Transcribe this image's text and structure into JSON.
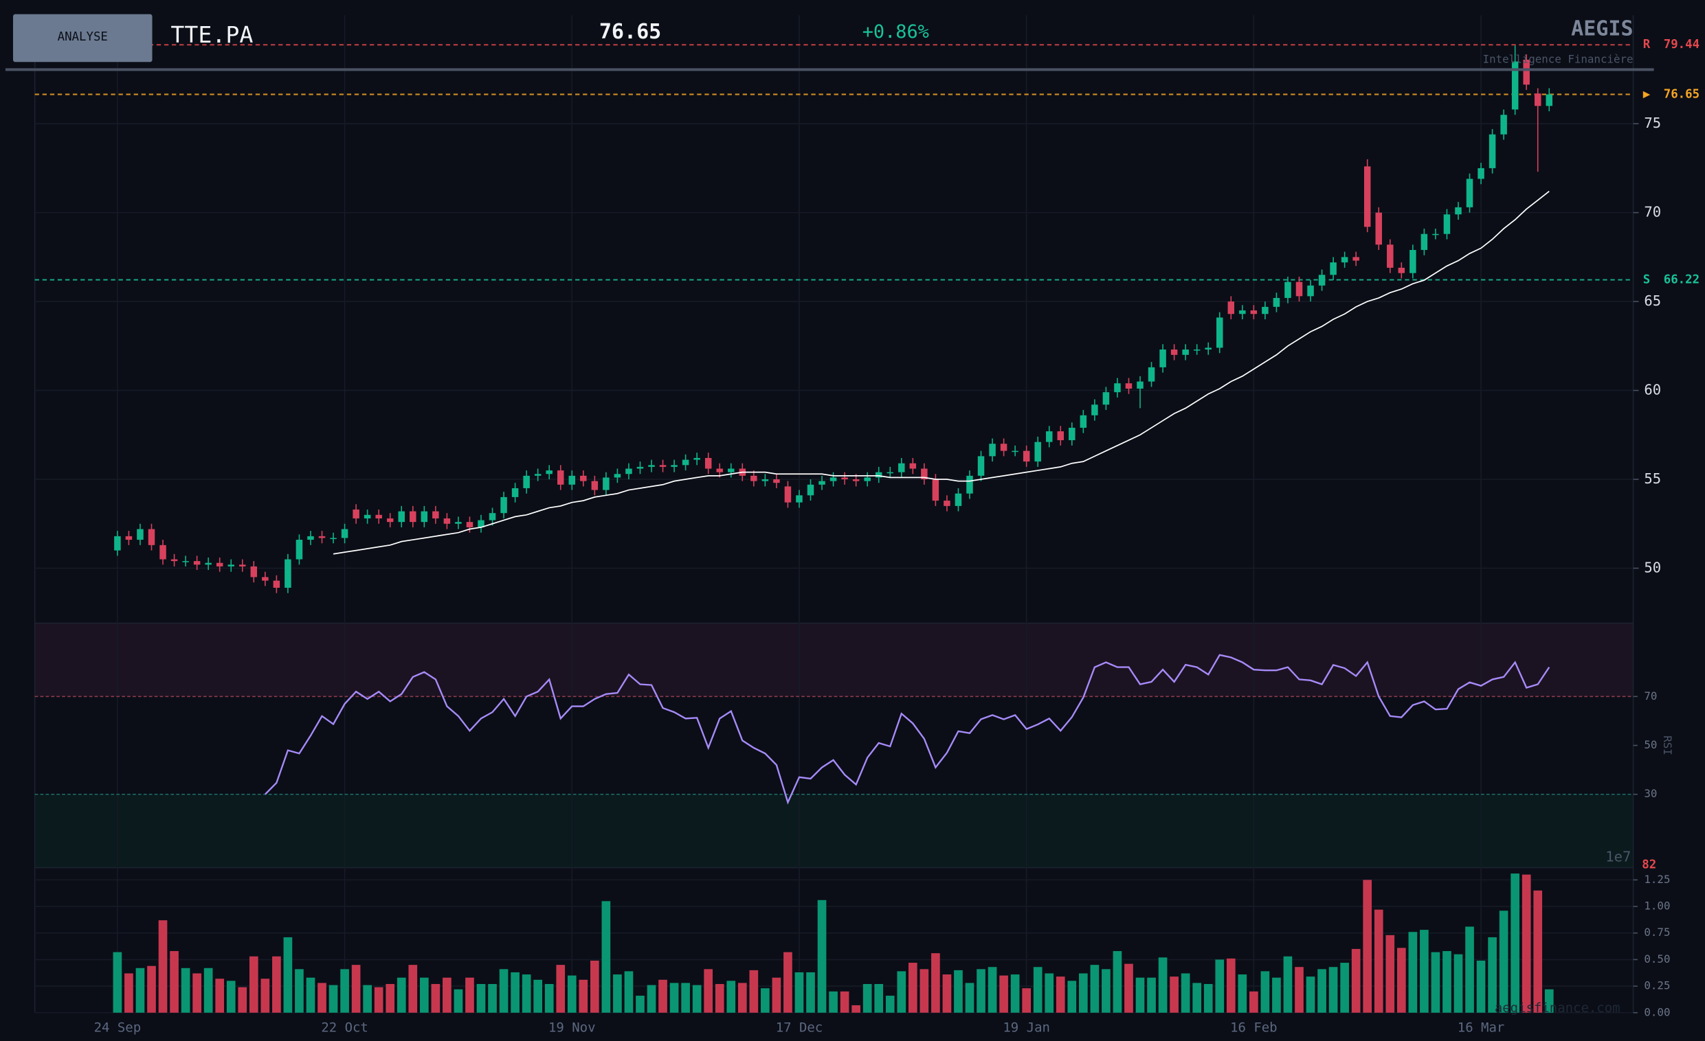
{
  "header": {
    "button": "ANALYSE",
    "symbol": "TTE.PA",
    "price": "76.65",
    "change": "+0.86%",
    "brand": "AEGIS",
    "tagline": "Intelligence Financière",
    "watermark": "aegisfinance.com"
  },
  "chart_data": {
    "type": "candlestick",
    "categories": [
      "24 Sep",
      null,
      null,
      null,
      null,
      null,
      null,
      null,
      null,
      null,
      null,
      null,
      null,
      null,
      null,
      null,
      null,
      null,
      null,
      null,
      "22 Oct",
      null,
      null,
      null,
      null,
      null,
      null,
      null,
      null,
      null,
      null,
      null,
      null,
      null,
      null,
      null,
      null,
      null,
      null,
      null,
      "19 Nov",
      null,
      null,
      null,
      null,
      null,
      null,
      null,
      null,
      null,
      null,
      null,
      null,
      null,
      null,
      null,
      null,
      null,
      null,
      null,
      "17 Dec",
      null,
      null,
      null,
      null,
      null,
      null,
      null,
      null,
      null,
      null,
      null,
      null,
      null,
      null,
      null,
      null,
      null,
      null,
      null,
      "19 Jan",
      null,
      null,
      null,
      null,
      null,
      null,
      null,
      null,
      null,
      null,
      null,
      null,
      null,
      null,
      null,
      null,
      null,
      null,
      null,
      "16 Feb",
      null,
      null,
      null,
      null,
      null,
      null,
      null,
      null,
      null,
      null,
      null,
      null,
      null,
      null,
      null,
      null,
      null,
      null,
      null,
      "16 Mar",
      null,
      null,
      null,
      null,
      null,
      null
    ],
    "open": [
      51.0,
      51.8,
      51.6,
      52.2,
      51.3,
      50.5,
      50.4,
      50.4,
      50.2,
      50.3,
      50.1,
      50.2,
      50.1,
      49.5,
      49.3,
      48.9,
      50.5,
      51.6,
      51.8,
      51.7,
      51.7,
      53.3,
      52.8,
      53.0,
      52.8,
      52.6,
      53.2,
      52.6,
      53.2,
      52.8,
      52.5,
      52.6,
      52.3,
      52.7,
      53.1,
      54.0,
      54.5,
      55.2,
      55.3,
      55.5,
      54.7,
      55.2,
      54.9,
      54.4,
      55.1,
      55.3,
      55.6,
      55.7,
      55.8,
      55.7,
      55.8,
      56.1,
      56.2,
      55.6,
      55.4,
      55.6,
      55.2,
      54.9,
      55.0,
      54.6,
      53.7,
      54.1,
      54.7,
      54.9,
      55.1,
      55.0,
      54.9,
      55.1,
      55.4,
      55.4,
      55.9,
      55.6,
      55.0,
      53.8,
      53.5,
      54.2,
      55.2,
      56.3,
      57.0,
      56.6,
      56.6,
      56.0,
      57.1,
      57.7,
      57.2,
      57.9,
      58.6,
      59.2,
      59.9,
      60.4,
      60.1,
      60.5,
      61.3,
      62.3,
      62.0,
      62.3,
      62.3,
      62.4,
      65.0,
      64.3,
      64.5,
      64.3,
      64.7,
      65.2,
      66.1,
      65.3,
      65.9,
      66.5,
      67.2,
      67.5,
      72.6,
      70.0,
      68.2,
      66.9,
      66.6,
      67.9,
      68.8,
      68.8,
      69.9,
      70.3,
      71.9,
      72.5,
      74.4,
      75.8,
      78.6,
      76.7,
      76.0
    ],
    "high": [
      52.1,
      52.1,
      52.5,
      52.5,
      51.6,
      50.8,
      50.7,
      50.7,
      50.6,
      50.6,
      50.5,
      50.5,
      50.4,
      49.8,
      49.6,
      50.8,
      51.9,
      52.1,
      52.1,
      52.0,
      52.5,
      53.6,
      53.3,
      53.3,
      53.1,
      53.5,
      53.5,
      53.5,
      53.5,
      53.1,
      52.9,
      52.9,
      53.0,
      53.4,
      54.3,
      54.8,
      55.5,
      55.6,
      55.8,
      55.8,
      55.5,
      55.5,
      55.2,
      55.4,
      55.6,
      55.9,
      56.0,
      56.1,
      56.1,
      56.1,
      56.4,
      56.5,
      56.5,
      55.9,
      55.9,
      55.9,
      55.5,
      55.3,
      55.3,
      54.9,
      54.4,
      55.0,
      55.2,
      55.4,
      55.4,
      55.3,
      55.4,
      55.7,
      55.7,
      56.2,
      56.2,
      55.9,
      55.3,
      54.1,
      54.5,
      55.5,
      56.6,
      57.3,
      57.3,
      56.9,
      56.9,
      57.4,
      58.0,
      58.0,
      58.2,
      58.9,
      59.5,
      60.2,
      60.7,
      60.7,
      60.8,
      61.6,
      62.6,
      62.6,
      62.6,
      62.6,
      62.7,
      64.4,
      65.3,
      64.8,
      64.8,
      65.0,
      65.5,
      66.4,
      66.4,
      66.2,
      66.8,
      67.5,
      67.8,
      67.8,
      73.0,
      70.3,
      68.5,
      67.2,
      68.2,
      69.1,
      69.1,
      70.2,
      70.6,
      72.2,
      72.8,
      74.7,
      75.8,
      79.4,
      78.9,
      77.0,
      77.0
    ],
    "low": [
      50.7,
      51.3,
      51.3,
      51.0,
      50.2,
      50.1,
      50.1,
      49.9,
      49.9,
      49.8,
      49.8,
      49.8,
      49.2,
      49.0,
      48.6,
      48.6,
      50.2,
      51.3,
      51.4,
      51.4,
      51.4,
      52.5,
      52.5,
      52.5,
      52.3,
      52.3,
      52.3,
      52.3,
      52.5,
      52.2,
      52.2,
      52.0,
      52.0,
      52.4,
      52.8,
      53.7,
      54.2,
      54.9,
      55.0,
      54.4,
      54.4,
      54.6,
      54.1,
      54.1,
      54.8,
      55.0,
      55.3,
      55.4,
      55.4,
      55.4,
      55.5,
      55.8,
      55.3,
      55.1,
      55.1,
      54.9,
      54.6,
      54.6,
      54.5,
      53.4,
      53.4,
      53.8,
      54.4,
      54.6,
      54.7,
      54.6,
      54.6,
      54.8,
      55.1,
      55.1,
      55.3,
      54.7,
      53.5,
      53.2,
      53.2,
      53.9,
      54.9,
      56.0,
      56.3,
      56.3,
      55.7,
      55.7,
      56.8,
      56.9,
      56.9,
      57.6,
      58.3,
      58.9,
      59.6,
      59.8,
      59.0,
      60.2,
      61.0,
      61.7,
      61.7,
      62.0,
      62.0,
      62.1,
      64.0,
      64.0,
      64.0,
      64.0,
      64.4,
      64.9,
      65.0,
      65.0,
      65.6,
      66.2,
      66.9,
      67.0,
      68.9,
      67.9,
      66.6,
      66.3,
      66.3,
      67.6,
      68.5,
      68.5,
      69.6,
      70.0,
      71.6,
      72.2,
      74.1,
      75.5,
      76.9,
      72.3,
      75.7
    ],
    "close": [
      51.8,
      51.6,
      52.2,
      51.3,
      50.5,
      50.4,
      50.4,
      50.2,
      50.3,
      50.1,
      50.2,
      50.1,
      49.5,
      49.3,
      48.9,
      50.5,
      51.6,
      51.8,
      51.7,
      51.7,
      52.2,
      52.8,
      53.0,
      52.8,
      52.6,
      53.2,
      52.6,
      53.2,
      52.8,
      52.5,
      52.6,
      52.3,
      52.7,
      53.1,
      54.0,
      54.5,
      55.2,
      55.3,
      55.5,
      54.7,
      55.2,
      54.9,
      54.4,
      55.1,
      55.3,
      55.6,
      55.7,
      55.8,
      55.7,
      55.8,
      56.1,
      56.2,
      55.6,
      55.4,
      55.6,
      55.2,
      54.9,
      55.0,
      54.8,
      53.7,
      54.1,
      54.7,
      54.9,
      55.1,
      55.0,
      54.9,
      55.1,
      55.4,
      55.4,
      55.9,
      55.6,
      55.0,
      53.8,
      53.5,
      54.2,
      55.2,
      56.3,
      57.0,
      56.6,
      56.6,
      56.0,
      57.1,
      57.7,
      57.2,
      57.9,
      58.6,
      59.2,
      59.9,
      60.4,
      60.1,
      60.5,
      61.3,
      62.3,
      62.0,
      62.3,
      62.3,
      62.4,
      64.1,
      64.3,
      64.5,
      64.3,
      64.7,
      65.2,
      66.1,
      65.3,
      65.9,
      66.5,
      67.2,
      67.5,
      67.3,
      69.2,
      68.2,
      66.9,
      66.6,
      67.9,
      68.8,
      68.8,
      69.9,
      70.3,
      71.9,
      72.5,
      74.4,
      75.5,
      78.5,
      77.2,
      76.0,
      76.65
    ],
    "up_color": "#0fb58a",
    "down_color": "#d8415d",
    "ylim": [
      47,
      81.1
    ],
    "yticks": [
      50,
      55,
      60,
      65,
      70,
      75
    ],
    "grid": true,
    "ma": {
      "color": "#ffffff",
      "values": [
        null,
        null,
        null,
        null,
        null,
        null,
        null,
        null,
        null,
        null,
        null,
        null,
        null,
        null,
        null,
        null,
        null,
        null,
        null,
        50.8,
        50.9,
        51.0,
        51.1,
        51.2,
        51.3,
        51.5,
        51.6,
        51.7,
        51.8,
        51.9,
        52.0,
        52.2,
        52.3,
        52.5,
        52.7,
        52.9,
        53.0,
        53.2,
        53.4,
        53.5,
        53.7,
        53.8,
        54.0,
        54.1,
        54.2,
        54.4,
        54.5,
        54.6,
        54.7,
        54.9,
        55.0,
        55.1,
        55.2,
        55.2,
        55.3,
        55.4,
        55.4,
        55.4,
        55.3,
        55.3,
        55.3,
        55.3,
        55.3,
        55.2,
        55.2,
        55.2,
        55.2,
        55.2,
        55.1,
        55.1,
        55.1,
        55.1,
        55.0,
        55.0,
        54.9,
        54.9,
        55.0,
        55.1,
        55.2,
        55.3,
        55.4,
        55.5,
        55.6,
        55.7,
        55.9,
        56.0,
        56.3,
        56.6,
        56.9,
        57.2,
        57.5,
        57.9,
        58.3,
        58.7,
        59.0,
        59.4,
        59.8,
        60.1,
        60.5,
        60.8,
        61.2,
        61.6,
        62.0,
        62.5,
        62.9,
        63.3,
        63.6,
        64.0,
        64.3,
        64.7,
        65.0,
        65.2,
        65.5,
        65.7,
        66.0,
        66.2,
        66.6,
        67.0,
        67.3,
        67.7,
        68.0,
        68.5,
        69.1,
        69.6,
        70.2,
        70.7,
        71.2
      ]
    },
    "levels": [
      {
        "label": "R",
        "value": 79.44,
        "color": "#e5484d"
      },
      {
        "label": "▶",
        "value": 76.65,
        "color": "#f5a524"
      },
      {
        "label": "S",
        "value": 66.22,
        "color": "#19c39a"
      }
    ],
    "rsi": {
      "label": "RSI",
      "color": "#a78bfa",
      "ylim": [
        0,
        100
      ],
      "yticks": [
        30,
        50,
        70
      ],
      "overbought": 70,
      "oversold": 30,
      "last_value_label": "82",
      "values": [
        null,
        null,
        null,
        null,
        null,
        null,
        null,
        null,
        null,
        null,
        null,
        null,
        null,
        30,
        34.7,
        48,
        46.7,
        54,
        62,
        58.7,
        67,
        72,
        69,
        72,
        68,
        71,
        78,
        80,
        77,
        66,
        62,
        56,
        61,
        63.6,
        69,
        62,
        70,
        72,
        77,
        61,
        66,
        66,
        69,
        71,
        71.5,
        79,
        75,
        74.7,
        65.3,
        63.6,
        61,
        61.3,
        49,
        61,
        64,
        52,
        49,
        46.7,
        42,
        26.7,
        37,
        36.4,
        41,
        44,
        38,
        34,
        45,
        51,
        49.6,
        63,
        59,
        52.7,
        41,
        47,
        55.8,
        55,
        60.7,
        62.4,
        60.7,
        62.4,
        56.7,
        58.6,
        61,
        56,
        61.6,
        69.6,
        82,
        84,
        82,
        82,
        75,
        76,
        81,
        76,
        83,
        82,
        79,
        87,
        86,
        84,
        81,
        80.7,
        80.7,
        82,
        77,
        76.6,
        75,
        82.9,
        81.6,
        78.4,
        84,
        70,
        62,
        61.5,
        66.5,
        68,
        64.7,
        65,
        73,
        75.8,
        74.4,
        77,
        78,
        84,
        73.6,
        75,
        82
      ]
    },
    "volume": {
      "offset_label": "1e7",
      "up_color": "#0a9672",
      "down_color": "#c7384f",
      "ylim": [
        0,
        1.35
      ],
      "yticks": [
        {
          "value": 0,
          "label": "0.00"
        },
        {
          "value": 0.25,
          "label": "0.25"
        },
        {
          "value": 0.5,
          "label": "0.50"
        },
        {
          "value": 0.75,
          "label": "0.75"
        },
        {
          "value": 1,
          "label": "1.00"
        },
        {
          "value": 1.25,
          "label": "1.25"
        }
      ],
      "values": [
        0.57,
        0.37,
        0.42,
        0.44,
        0.87,
        0.58,
        0.42,
        0.37,
        0.42,
        0.32,
        0.3,
        0.24,
        0.53,
        0.32,
        0.53,
        0.71,
        0.41,
        0.33,
        0.28,
        0.26,
        0.41,
        0.45,
        0.26,
        0.24,
        0.27,
        0.33,
        0.45,
        0.33,
        0.27,
        0.33,
        0.22,
        0.33,
        0.27,
        0.27,
        0.41,
        0.38,
        0.36,
        0.31,
        0.27,
        0.45,
        0.35,
        0.31,
        0.49,
        1.05,
        0.36,
        0.39,
        0.16,
        0.26,
        0.31,
        0.28,
        0.28,
        0.26,
        0.41,
        0.27,
        0.3,
        0.28,
        0.4,
        0.23,
        0.33,
        0.57,
        0.38,
        0.38,
        1.06,
        0.2,
        0.2,
        0.07,
        0.27,
        0.27,
        0.16,
        0.39,
        0.47,
        0.41,
        0.56,
        0.36,
        0.4,
        0.28,
        0.41,
        0.43,
        0.35,
        0.36,
        0.23,
        0.43,
        0.37,
        0.34,
        0.3,
        0.37,
        0.45,
        0.41,
        0.58,
        0.46,
        0.33,
        0.33,
        0.52,
        0.34,
        0.37,
        0.28,
        0.27,
        0.5,
        0.51,
        0.36,
        0.2,
        0.39,
        0.33,
        0.53,
        0.43,
        0.34,
        0.41,
        0.43,
        0.47,
        0.6,
        1.25,
        0.97,
        0.73,
        0.61,
        0.76,
        0.78,
        0.57,
        0.58,
        0.55,
        0.81,
        0.49,
        0.71,
        0.96,
        1.31,
        1.3,
        1.15,
        0.22
      ]
    }
  }
}
